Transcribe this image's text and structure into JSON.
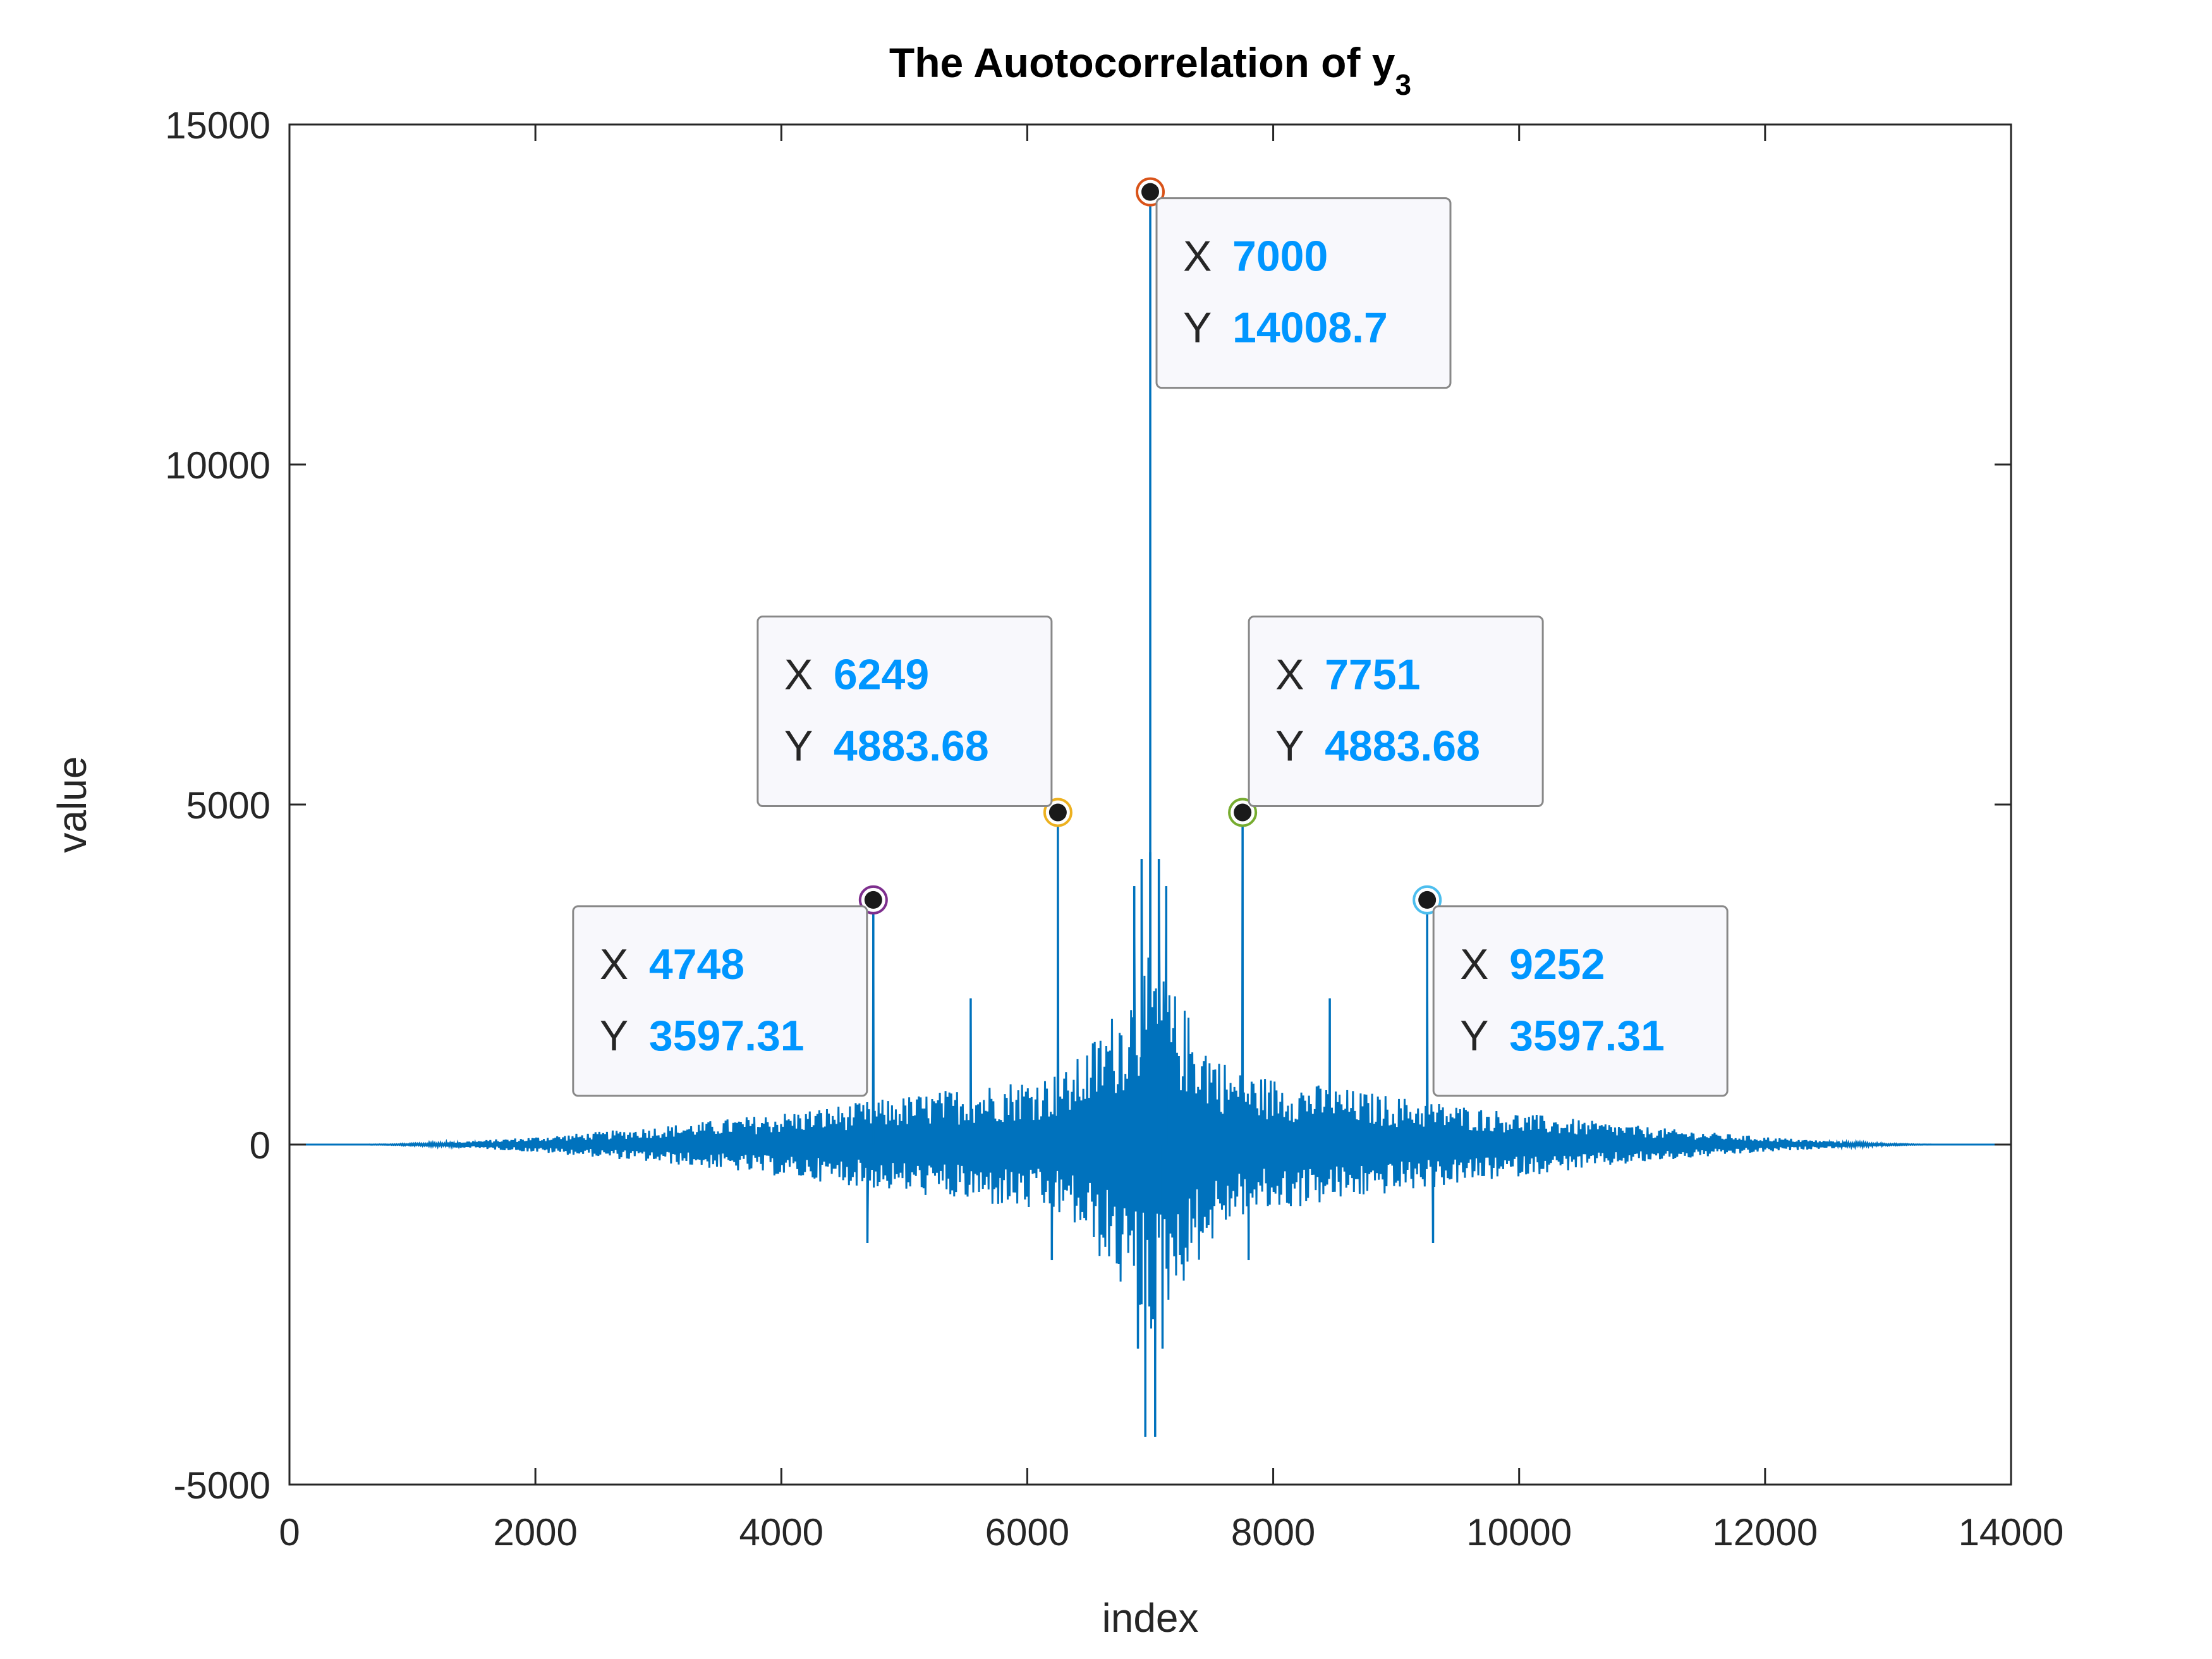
{
  "chart_data": {
    "type": "line",
    "title": "The Auotocorrelation of y",
    "title_subscript": "3",
    "xlabel": "index",
    "ylabel": "value",
    "xlim": [
      0,
      14000
    ],
    "ylim": [
      -5000,
      15000
    ],
    "xticks": [
      0,
      2000,
      4000,
      6000,
      8000,
      10000,
      12000,
      14000
    ],
    "xtick_labels": [
      "0",
      "2000",
      "4000",
      "6000",
      "8000",
      "10000",
      "12000",
      "14000"
    ],
    "yticks": [
      -5000,
      0,
      5000,
      10000,
      15000
    ],
    "ytick_labels": [
      "-5000",
      "0",
      "5000",
      "10000",
      "15000"
    ],
    "grid": false,
    "series_color": "#0072BD",
    "series": [
      {
        "peaks": [
          {
            "x": 7000,
            "y": 14008.7
          },
          {
            "x": 6249,
            "y": 4883.68
          },
          {
            "x": 7751,
            "y": 4883.68
          },
          {
            "x": 4748,
            "y": 3597.31
          },
          {
            "x": 9252,
            "y": 3597.31
          },
          {
            "x": 6930,
            "y": 4200
          },
          {
            "x": 7070,
            "y": 4200
          },
          {
            "x": 6870,
            "y": 3800
          },
          {
            "x": 7130,
            "y": 3800
          },
          {
            "x": 5540,
            "y": 2150
          },
          {
            "x": 8460,
            "y": 2150
          },
          {
            "x": 7000,
            "y": 4300
          }
        ],
        "troughs": [
          {
            "x": 6960,
            "y": -4300
          },
          {
            "x": 7040,
            "y": -4300
          },
          {
            "x": 6900,
            "y": -3000
          },
          {
            "x": 7100,
            "y": -3000
          },
          {
            "x": 4700,
            "y": -1450
          },
          {
            "x": 9300,
            "y": -1450
          },
          {
            "x": 6200,
            "y": -1700
          },
          {
            "x": 7800,
            "y": -1700
          }
        ]
      }
    ],
    "datatips": [
      {
        "x_label": "X",
        "x_value": "7000",
        "y_label": "Y",
        "y_value": "14008.7",
        "x": 7000,
        "y": 14008.7
      },
      {
        "x_label": "X",
        "x_value": "6249",
        "y_label": "Y",
        "y_value": "4883.68",
        "x": 6249,
        "y": 4883.68
      },
      {
        "x_label": "X",
        "x_value": "7751",
        "y_label": "Y",
        "y_value": "4883.68",
        "x": 7751,
        "y": 4883.68
      },
      {
        "x_label": "X",
        "x_value": "4748",
        "y_label": "Y",
        "y_value": "3597.31",
        "x": 4748,
        "y": 3597.31
      },
      {
        "x_label": "X",
        "x_value": "9252",
        "y_label": "Y",
        "y_value": "3597.31",
        "x": 9252,
        "y": 3597.31
      }
    ],
    "datatip_value_color": "#0096FF"
  }
}
